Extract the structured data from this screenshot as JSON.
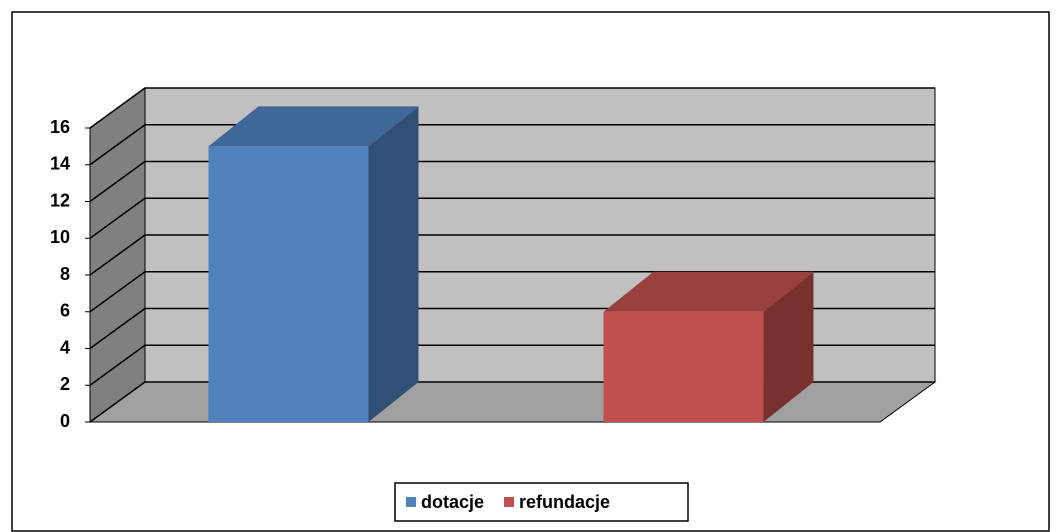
{
  "chart_data": {
    "type": "bar",
    "categories": [
      null
    ],
    "series": [
      {
        "name": "dotacje",
        "color": "#4f81bd",
        "values": [
          15
        ]
      },
      {
        "name": "refundacje",
        "color": "#c0504d",
        "values": [
          6
        ]
      }
    ],
    "ylim": [
      0,
      16
    ],
    "yticks": [
      0,
      2,
      4,
      6,
      8,
      10,
      12,
      14,
      16
    ],
    "grid": true,
    "legend": "bottom"
  }
}
